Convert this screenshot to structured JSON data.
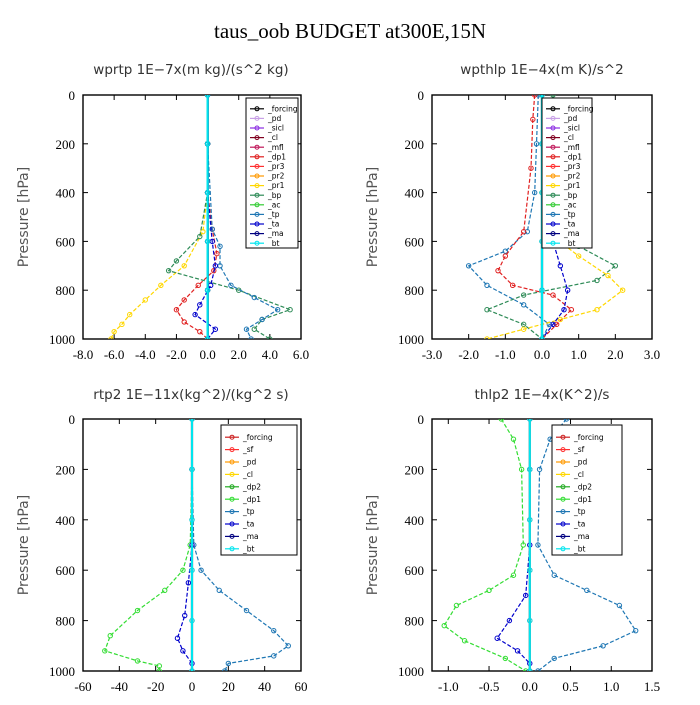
{
  "figure": {
    "title": "taus_oob  BUDGET at300E,15N"
  },
  "chart_data": [
    {
      "id": "wprtp",
      "type": "line",
      "title": "wprtp   1E−7x(m kg)/(s^2 kg)",
      "ylabel": "Pressure [hPa]",
      "xlim": [
        -8,
        6
      ],
      "ylim": [
        1000,
        0
      ],
      "xticks": [
        -8,
        -6,
        -4,
        -2,
        0,
        2,
        4,
        6
      ],
      "xtick_labels": [
        "-8.0",
        "-6.0",
        "-4.0",
        "-2.0",
        "0.0",
        "2.0",
        "4.0",
        "6.0"
      ],
      "yticks": [
        0,
        200,
        400,
        600,
        800,
        1000
      ],
      "legend": [
        "_forcing",
        "_pd",
        "_sicl",
        "_cl",
        "_mfl",
        "_dp1",
        "_pr3",
        "_pr2",
        "_pr1",
        "_bp",
        "_ac",
        "_tp",
        "_ta",
        "_ma",
        "_bt"
      ],
      "legend_colors": [
        "#000000",
        "#c8a0e6",
        "#8a2be2",
        "#800020",
        "#c0185a",
        "#e02020",
        "#ff3030",
        "#ff9900",
        "#ffd700",
        "#2e8b57",
        "#33cc33",
        "#1f77b4",
        "#0000cc",
        "#000080",
        "#00e5ee"
      ],
      "series": [
        {
          "name": "_pr1",
          "color": "#ffd700",
          "x": [
            0,
            0,
            0,
            -0.3,
            -1.5,
            -3.0,
            -4.0,
            -5.0,
            -5.5,
            -6.0,
            -6.2
          ],
          "y": [
            0,
            200,
            400,
            560,
            700,
            780,
            840,
            900,
            940,
            970,
            1000
          ]
        },
        {
          "name": "_dp1",
          "color": "#e02020",
          "x": [
            0,
            0,
            0,
            0.3,
            0.6,
            0.4,
            -0.6,
            -1.5,
            -2.0,
            -1.5,
            -0.5,
            0
          ],
          "y": [
            0,
            200,
            400,
            550,
            650,
            720,
            780,
            840,
            880,
            930,
            970,
            1000
          ]
        },
        {
          "name": "_bp",
          "color": "#2e8b57",
          "x": [
            0,
            0,
            0,
            -0.5,
            -2.0,
            -2.5,
            2.0,
            5.3,
            3.5,
            3.0,
            4.0
          ],
          "y": [
            0,
            200,
            400,
            580,
            680,
            720,
            800,
            880,
            920,
            960,
            1000
          ]
        },
        {
          "name": "_tp",
          "color": "#1f77b4",
          "x": [
            0,
            0,
            0.3,
            0.8,
            0.8,
            1.5,
            3.0,
            4.5,
            3.5,
            2.5,
            2.8
          ],
          "y": [
            0,
            200,
            550,
            620,
            700,
            780,
            830,
            880,
            920,
            960,
            1000
          ]
        },
        {
          "name": "_ta",
          "color": "#0000cc",
          "x": [
            0,
            0,
            0,
            0.3,
            0.5,
            0.2,
            -0.5,
            -0.8,
            0.5,
            0
          ],
          "y": [
            0,
            200,
            400,
            600,
            700,
            780,
            860,
            900,
            960,
            1000
          ]
        },
        {
          "name": "_forcing",
          "color": "#000000",
          "x": [
            0,
            0,
            0,
            0,
            0,
            0
          ],
          "y": [
            0,
            200,
            400,
            600,
            800,
            1000
          ]
        },
        {
          "name": "_ma",
          "color": "#000080",
          "x": [
            0,
            0,
            0,
            0,
            0,
            0
          ],
          "y": [
            0,
            200,
            400,
            600,
            800,
            1000
          ]
        },
        {
          "name": "_bt",
          "color": "#00e5ee",
          "x": [
            0,
            0,
            0,
            0,
            0,
            0
          ],
          "y": [
            0,
            200,
            400,
            600,
            800,
            1000
          ]
        }
      ]
    },
    {
      "id": "wpthlp",
      "type": "line",
      "title": "wpthlp   1E−4x(m K)/s^2",
      "ylabel": "Pressure [hPa]",
      "xlim": [
        -3,
        3
      ],
      "ylim": [
        1000,
        0
      ],
      "xticks": [
        -3,
        -2,
        -1,
        0,
        1,
        2,
        3
      ],
      "xtick_labels": [
        "-3.0",
        "-2.0",
        "-1.0",
        "0.0",
        "1.0",
        "2.0",
        "3.0"
      ],
      "yticks": [
        0,
        200,
        400,
        600,
        800,
        1000
      ],
      "legend": [
        "_forcing",
        "_pd",
        "_sicl",
        "_cl",
        "_mfl",
        "_dp1",
        "_pr3",
        "_pr2",
        "_pr1",
        "_bp",
        "_ac",
        "_tp",
        "_ta",
        "_ma",
        "_bt"
      ],
      "legend_colors": [
        "#000000",
        "#c8a0e6",
        "#8a2be2",
        "#800020",
        "#c0185a",
        "#e02020",
        "#ff3030",
        "#ff9900",
        "#ffd700",
        "#2e8b57",
        "#33cc33",
        "#1f77b4",
        "#0000cc",
        "#000080",
        "#00e5ee"
      ],
      "series": [
        {
          "name": "_bp",
          "color": "#2e8b57",
          "x": [
            0.3,
            0.3,
            0.4,
            0.6,
            0.7,
            1.0,
            2.0,
            1.5,
            -0.5,
            -1.5,
            -0.5,
            0
          ],
          "y": [
            0,
            100,
            300,
            500,
            560,
            620,
            700,
            760,
            820,
            880,
            940,
            1000
          ]
        },
        {
          "name": "_tp",
          "color": "#1f77b4",
          "x": [
            -0.1,
            -0.15,
            -0.2,
            -0.4,
            -1.0,
            -2.0,
            -1.5,
            -0.5,
            0.2,
            0
          ],
          "y": [
            0,
            200,
            400,
            560,
            640,
            700,
            780,
            860,
            940,
            1000
          ]
        },
        {
          "name": "_dp1",
          "color": "#e02020",
          "x": [
            -0.2,
            -0.25,
            -0.3,
            -0.5,
            -1.0,
            -1.2,
            -0.8,
            0.3,
            0.8,
            0.4,
            0
          ],
          "y": [
            0,
            100,
            300,
            560,
            660,
            720,
            780,
            820,
            880,
            940,
            1000
          ]
        },
        {
          "name": "_pr1",
          "color": "#ffd700",
          "x": [
            0,
            0,
            0,
            0.3,
            1.0,
            1.8,
            2.2,
            1.5,
            0.5,
            -0.5,
            -1.5
          ],
          "y": [
            0,
            200,
            400,
            580,
            660,
            740,
            800,
            880,
            920,
            960,
            1000
          ]
        },
        {
          "name": "_ta",
          "color": "#0000cc",
          "x": [
            0,
            0,
            0.1,
            0.3,
            0.5,
            0.7,
            0.6,
            0.3,
            0
          ],
          "y": [
            0,
            200,
            400,
            600,
            700,
            800,
            880,
            940,
            1000
          ]
        },
        {
          "name": "_forcing",
          "color": "#000000",
          "x": [
            0,
            0,
            0,
            0,
            0,
            0
          ],
          "y": [
            0,
            200,
            400,
            600,
            800,
            1000
          ]
        },
        {
          "name": "_bt",
          "color": "#00e5ee",
          "x": [
            0,
            0,
            0,
            0,
            0,
            0
          ],
          "y": [
            0,
            200,
            400,
            600,
            800,
            1000
          ]
        }
      ]
    },
    {
      "id": "rtp2",
      "type": "line",
      "title": "rtp2   1E−11x(kg^2)/(kg^2 s)",
      "ylabel": "Pressure [hPa]",
      "xlim": [
        -60,
        60
      ],
      "ylim": [
        1000,
        0
      ],
      "xticks": [
        -60,
        -40,
        -20,
        0,
        20,
        40,
        60
      ],
      "xtick_labels": [
        "-60",
        "-40",
        "-20",
        "0",
        "20",
        "40",
        "60"
      ],
      "yticks": [
        0,
        200,
        400,
        600,
        800,
        1000
      ],
      "legend": [
        "_forcing",
        "_sf",
        "_pd",
        "_cl",
        "_dp2",
        "_dp1",
        "_tp",
        "_ta",
        "_ma",
        "_bt"
      ],
      "legend_colors": [
        "#cc2222",
        "#ff3030",
        "#ff9900",
        "#ffd700",
        "#22aa22",
        "#33dd33",
        "#1f77b4",
        "#0000cc",
        "#000080",
        "#00e5ee"
      ],
      "series": [
        {
          "name": "_dp1",
          "color": "#33dd33",
          "x": [
            0,
            0,
            -1,
            -5,
            -15,
            -30,
            -45,
            -48,
            -30,
            -18,
            -18
          ],
          "y": [
            0,
            200,
            500,
            600,
            680,
            760,
            860,
            920,
            960,
            980,
            1000
          ]
        },
        {
          "name": "_tp",
          "color": "#1f77b4",
          "x": [
            0,
            0,
            1,
            5,
            15,
            30,
            45,
            53,
            45,
            20,
            18
          ],
          "y": [
            0,
            200,
            500,
            600,
            680,
            760,
            840,
            900,
            940,
            970,
            1000
          ]
        },
        {
          "name": "_ta",
          "color": "#0000cc",
          "x": [
            0,
            0,
            0,
            -2,
            -4,
            -8,
            -5,
            0,
            0
          ],
          "y": [
            0,
            200,
            500,
            650,
            780,
            870,
            920,
            970,
            1000
          ]
        },
        {
          "name": "_forcing",
          "color": "#cc2222",
          "x": [
            0,
            0,
            0,
            0,
            0,
            0
          ],
          "y": [
            0,
            200,
            400,
            600,
            800,
            1000
          ]
        },
        {
          "name": "_bt",
          "color": "#00e5ee",
          "x": [
            0,
            0,
            0,
            0,
            0,
            0
          ],
          "y": [
            0,
            200,
            400,
            600,
            800,
            1000
          ]
        }
      ]
    },
    {
      "id": "thlp2",
      "type": "line",
      "title": "thlp2   1E−4x(K^2)/s",
      "ylabel": "Pressure [hPa]",
      "xlim": [
        -1.2,
        1.5
      ],
      "ylim": [
        1000,
        0
      ],
      "xticks": [
        -1.0,
        -0.5,
        0,
        0.5,
        1.0,
        1.5
      ],
      "xtick_labels": [
        "-1.0",
        "-0.5",
        "0.0",
        "0.5",
        "1.0",
        "1.5"
      ],
      "yticks": [
        0,
        200,
        400,
        600,
        800,
        1000
      ],
      "legend": [
        "_forcing",
        "_sf",
        "_pd",
        "_cl",
        "_dp2",
        "_dp1",
        "_tp",
        "_ta",
        "_ma",
        "_bt"
      ],
      "legend_colors": [
        "#cc2222",
        "#ff3030",
        "#ff9900",
        "#ffd700",
        "#22aa22",
        "#33dd33",
        "#1f77b4",
        "#0000cc",
        "#000080",
        "#00e5ee"
      ],
      "series": [
        {
          "name": "_dp1",
          "color": "#33dd33",
          "x": [
            -0.35,
            -0.2,
            -0.1,
            -0.08,
            -0.2,
            -0.5,
            -0.9,
            -1.05,
            -0.8,
            -0.3,
            -0.05
          ],
          "y": [
            0,
            80,
            200,
            500,
            620,
            680,
            740,
            820,
            880,
            950,
            1000
          ]
        },
        {
          "name": "_tp",
          "color": "#1f77b4",
          "x": [
            0.45,
            0.25,
            0.12,
            0.1,
            0.3,
            0.7,
            1.1,
            1.3,
            0.9,
            0.3,
            0.1
          ],
          "y": [
            0,
            80,
            200,
            500,
            620,
            680,
            740,
            840,
            900,
            950,
            1000
          ]
        },
        {
          "name": "_ta",
          "color": "#0000cc",
          "x": [
            0,
            0,
            0,
            -0.05,
            -0.25,
            -0.4,
            -0.15,
            0,
            0
          ],
          "y": [
            0,
            200,
            500,
            700,
            800,
            870,
            920,
            970,
            1000
          ]
        },
        {
          "name": "_forcing",
          "color": "#cc2222",
          "x": [
            0,
            0,
            0,
            0,
            0,
            0
          ],
          "y": [
            0,
            200,
            400,
            600,
            800,
            1000
          ]
        },
        {
          "name": "_bt",
          "color": "#00e5ee",
          "x": [
            0,
            0,
            0,
            0,
            0,
            0
          ],
          "y": [
            0,
            200,
            400,
            600,
            800,
            1000
          ]
        }
      ]
    }
  ]
}
